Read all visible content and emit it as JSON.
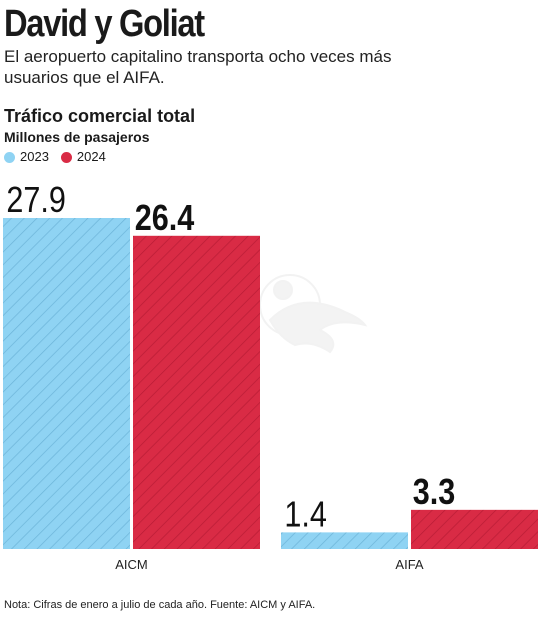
{
  "headline": "David y Goliat",
  "subtitle": "El aeropuerto capitalino transporta ocho veces más usuarios que el AIFA.",
  "note": "Nota: Cifras de enero a julio de cada año. Fuente: AICM y AIFA.",
  "colors": {
    "series_2023": "#8fd3f3",
    "series_2023_hatch": "#6cb4d8",
    "series_2024": "#d92b45",
    "series_2024_hatch": "#b81c35"
  },
  "watermark_icon": "eagle-emblem-icon",
  "chart_data": {
    "type": "bar",
    "title": "Tráfico comercial total",
    "ylabel": "Millones de pasajeros",
    "categories": [
      "AICM",
      "AIFA"
    ],
    "series": [
      {
        "name": "2023",
        "values": [
          27.9,
          1.4
        ],
        "labels": [
          "27.9",
          "1.4"
        ]
      },
      {
        "name": "2024",
        "values": [
          26.4,
          3.3
        ],
        "labels": [
          "26.4",
          "3.3"
        ]
      }
    ],
    "ylim": [
      0,
      27.9
    ],
    "grid": false,
    "legend_position": "top-left"
  }
}
